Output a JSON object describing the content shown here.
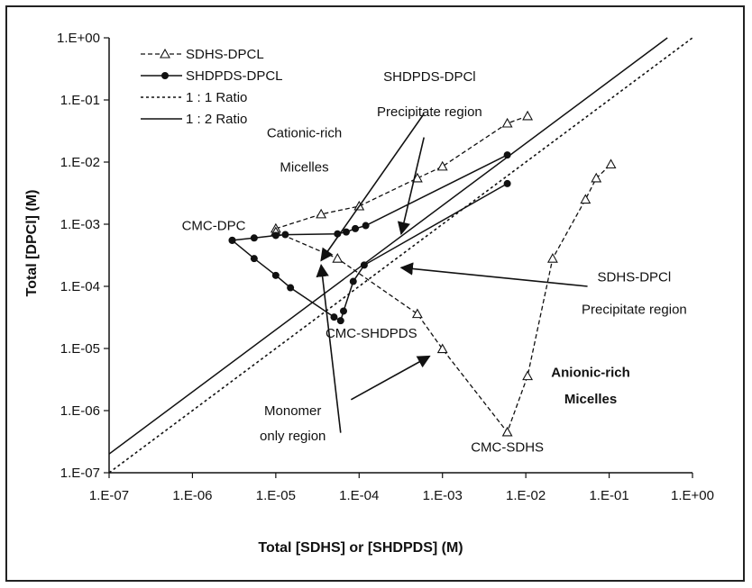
{
  "chart_data": {
    "type": "line",
    "xscale": "log",
    "yscale": "log",
    "xlim": [
      1e-07,
      1
    ],
    "ylim": [
      1e-07,
      1
    ],
    "xlabel": "Total [SDHS] or [SHDPDS] (M)",
    "ylabel": "Total [DPCl] (M)",
    "x_ticks": [
      "1.E-07",
      "1.E-06",
      "1.E-05",
      "1.E-04",
      "1.E-03",
      "1.E-02",
      "1.E-01",
      "1.E+00"
    ],
    "y_ticks": [
      "1.E-07",
      "1.E-06",
      "1.E-05",
      "1.E-04",
      "1.E-03",
      "1.E-02",
      "1.E-01",
      "1.E+00"
    ],
    "legend_position": "top-left",
    "series": [
      {
        "name": "SDHS-DPCL",
        "marker": "open-triangle",
        "line": "dashed",
        "segments": [
          [
            [
              1e-05,
              0.00085
            ],
            [
              3.5e-05,
              0.00145
            ],
            [
              0.0001,
              0.00195
            ],
            [
              0.0005,
              0.0055
            ],
            [
              0.001,
              0.0085
            ],
            [
              0.006,
              0.042
            ],
            [
              0.0105,
              0.055
            ]
          ],
          [
            [
              1e-05,
              0.00075
            ],
            [
              5.5e-05,
              0.00028
            ],
            [
              0.0005,
              3.6e-05
            ],
            [
              0.001,
              9.8e-06
            ],
            [
              0.006,
              4.5e-07
            ],
            [
              0.0105,
              3.6e-06
            ],
            [
              0.021,
              0.00028
            ],
            [
              0.052,
              0.0025
            ],
            [
              0.07,
              0.0055
            ],
            [
              0.105,
              0.0092
            ]
          ]
        ]
      },
      {
        "name": "SHDPDS-DPCL",
        "marker": "filled-circle",
        "line": "solid",
        "segments": [
          [
            [
              3e-06,
              0.00055
            ],
            [
              5.5e-06,
              0.0006
            ],
            [
              1e-05,
              0.00066
            ],
            [
              1.3e-05,
              0.00068
            ],
            [
              5.5e-05,
              0.0007
            ],
            [
              7e-05,
              0.00075
            ],
            [
              9e-05,
              0.00085
            ],
            [
              0.00012,
              0.00095
            ],
            [
              0.006,
              0.013
            ]
          ],
          [
            [
              3e-06,
              0.00055
            ],
            [
              5.5e-06,
              0.00028
            ],
            [
              1e-05,
              0.00015
            ],
            [
              1.5e-05,
              9.5e-05
            ],
            [
              5e-05,
              3.2e-05
            ],
            [
              6e-05,
              2.8e-05
            ],
            [
              6.5e-05,
              4e-05
            ],
            [
              8.5e-05,
              0.00012
            ],
            [
              0.000115,
              0.00022
            ],
            [
              0.006,
              0.0045
            ]
          ]
        ]
      },
      {
        "name": "1 : 1 Ratio",
        "marker": "none",
        "line": "dotted",
        "points": [
          [
            1e-07,
            1e-07
          ],
          [
            1,
            1
          ]
        ]
      },
      {
        "name": "1 : 2 Ratio",
        "marker": "none",
        "line": "solid",
        "points": [
          [
            1e-07,
            2e-07
          ],
          [
            0.5,
            1
          ]
        ]
      }
    ],
    "annotations": [
      {
        "text": "SHDPDS-DPCl",
        "x": 0.0007,
        "y": 0.2,
        "bold": false
      },
      {
        "text": "Precipitate region",
        "x": 0.0007,
        "y": 0.055,
        "bold": false
      },
      {
        "text": "Cationic-rich",
        "x": 2.2e-05,
        "y": 0.025,
        "bold": false
      },
      {
        "text": "Micelles",
        "x": 2.2e-05,
        "y": 0.007,
        "bold": false
      },
      {
        "text": "CMC-DPC",
        "x": 1.8e-06,
        "y": 0.0008,
        "bold": false
      },
      {
        "text": "CMC-SHDPDS",
        "x": 0.00014,
        "y": 1.5e-05,
        "bold": false
      },
      {
        "text": "SDHS-DPCl",
        "x": 0.2,
        "y": 0.00012,
        "bold": false
      },
      {
        "text": "Precipitate region",
        "x": 0.2,
        "y": 3.6e-05,
        "bold": false
      },
      {
        "text": "Anionic-rich",
        "x": 0.06,
        "y": 3.5e-06,
        "bold": true
      },
      {
        "text": "Micelles",
        "x": 0.06,
        "y": 1.3e-06,
        "bold": true
      },
      {
        "text": "Monomer",
        "x": 1.6e-05,
        "y": 8.5e-07,
        "bold": false
      },
      {
        "text": "only region",
        "x": 1.6e-05,
        "y": 3.3e-07,
        "bold": false
      },
      {
        "text": "CMC-SDHS",
        "x": 0.006,
        "y": 2.2e-07,
        "bold": false
      }
    ],
    "arrows": [
      {
        "from": [
          0.0006,
          0.06
        ],
        "to": [
          3.5e-05,
          0.00026
        ]
      },
      {
        "from": [
          0.055,
          0.0001
        ],
        "to": [
          0.00032,
          0.0002
        ]
      },
      {
        "from": [
          6e-05,
          4.4e-07
        ],
        "to": [
          3.5e-05,
          0.00022
        ]
      },
      {
        "from": [
          0.0006,
          0.025
        ],
        "to": [
          0.00032,
          0.0007
        ]
      },
      {
        "from": [
          8e-05,
          1.5e-06
        ],
        "to": [
          0.0007,
          7.5e-06
        ]
      }
    ]
  }
}
